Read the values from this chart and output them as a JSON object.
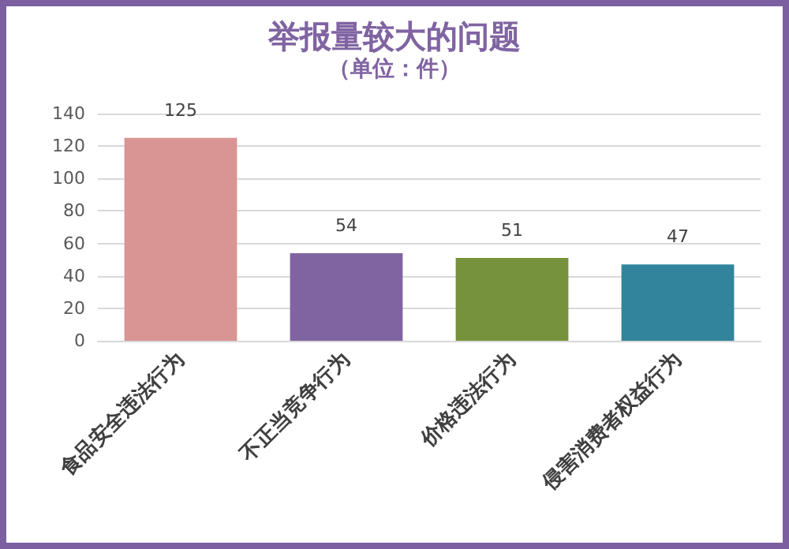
{
  "chart_data": {
    "type": "bar",
    "title": "举报量较大的问题",
    "subtitle": "（单位：件）",
    "categories": [
      "食品安全违法行为",
      "不正当竞争行为",
      "价格违法行为",
      "侵害消费者权益行为"
    ],
    "values": [
      125,
      54,
      51,
      47
    ],
    "colors": [
      "#d99594",
      "#8064a2",
      "#76923c",
      "#31849b"
    ],
    "ylim": [
      0,
      140
    ],
    "yticks": [
      0,
      20,
      40,
      60,
      80,
      100,
      120,
      140
    ],
    "grid": "y",
    "data_labels": true
  }
}
